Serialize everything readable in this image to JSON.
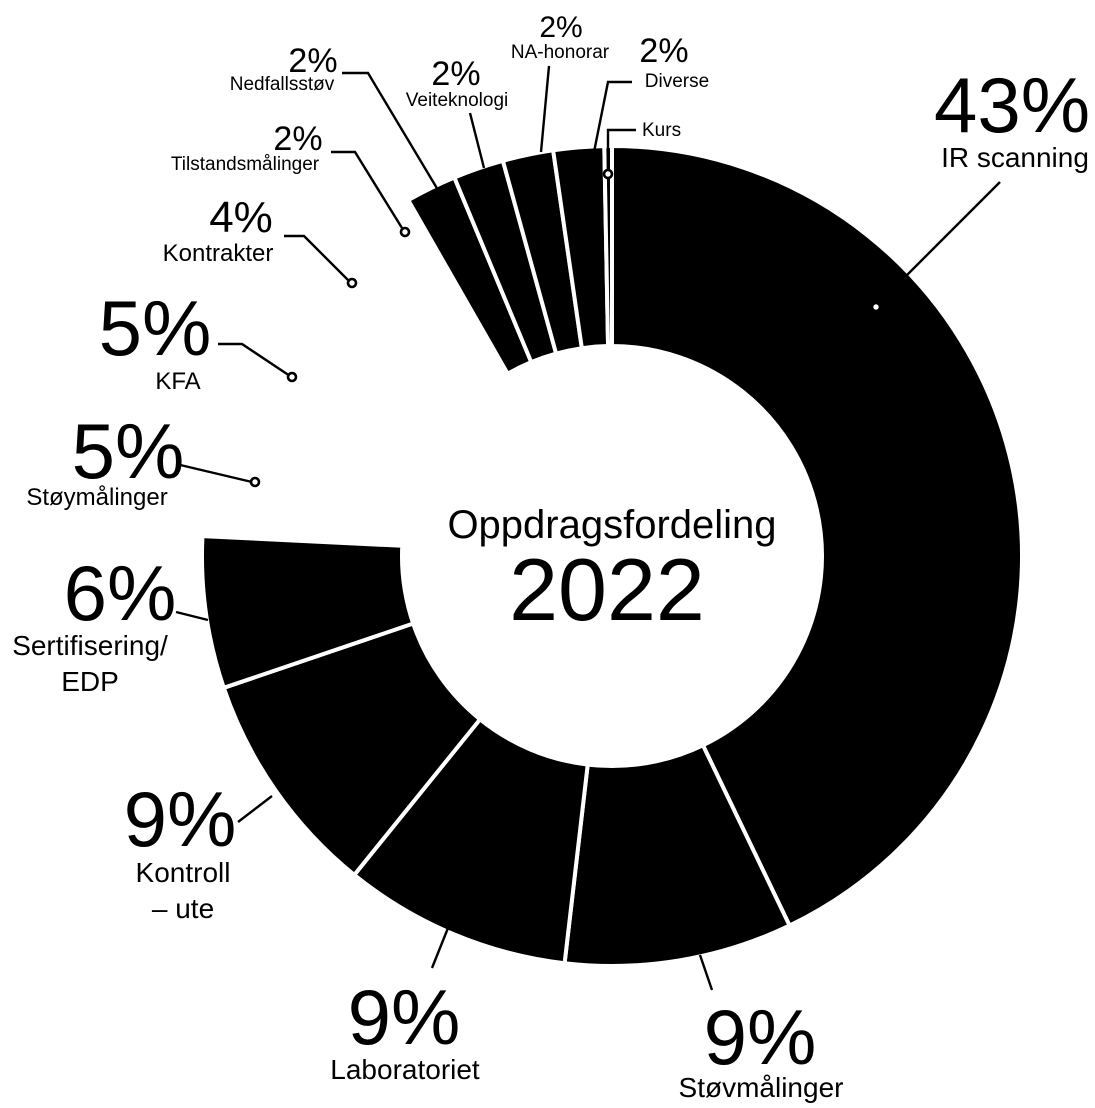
{
  "chart_data": {
    "type": "pie",
    "title": "Oppdragsfordeling",
    "subtitle": "2022",
    "style": "donut",
    "slices": [
      {
        "label": "IR scanning",
        "value": 43,
        "value_label": "43%",
        "filled": true
      },
      {
        "label": "Støvmålinger",
        "value": 9,
        "value_label": "9%",
        "filled": true
      },
      {
        "label": "Laboratoriet",
        "value": 9,
        "value_label": "9%",
        "filled": true
      },
      {
        "label": "Kontroll – ute",
        "value": 9,
        "value_label": "9%",
        "filled": true
      },
      {
        "label": "Sertifisering/ EDP",
        "value": 6,
        "value_label": "6%",
        "filled": true
      },
      {
        "label": "Støymålinger",
        "value": 5,
        "value_label": "5%",
        "filled": false
      },
      {
        "label": "KFA",
        "value": 5,
        "value_label": "5%",
        "filled": false
      },
      {
        "label": "Kontrakter",
        "value": 4,
        "value_label": "4%",
        "filled": false
      },
      {
        "label": "Tilstandsmålinger",
        "value": 2,
        "value_label": "2%",
        "filled": false
      },
      {
        "label": "Nedfallsstøv",
        "value": 2,
        "value_label": "2%",
        "filled": true
      },
      {
        "label": "Veiteknologi",
        "value": 2,
        "value_label": "2%",
        "filled": true
      },
      {
        "label": "NA-honorar",
        "value": 2,
        "value_label": "2%",
        "filled": true
      },
      {
        "label": "Diverse",
        "value": 2,
        "value_label": "2%",
        "filled": true
      },
      {
        "label": "Kurs",
        "value": 0.3,
        "value_label": "",
        "filled": true
      }
    ],
    "colors": {
      "fill": "#000000",
      "separator": "#ffffff",
      "background": "#ffffff"
    }
  }
}
